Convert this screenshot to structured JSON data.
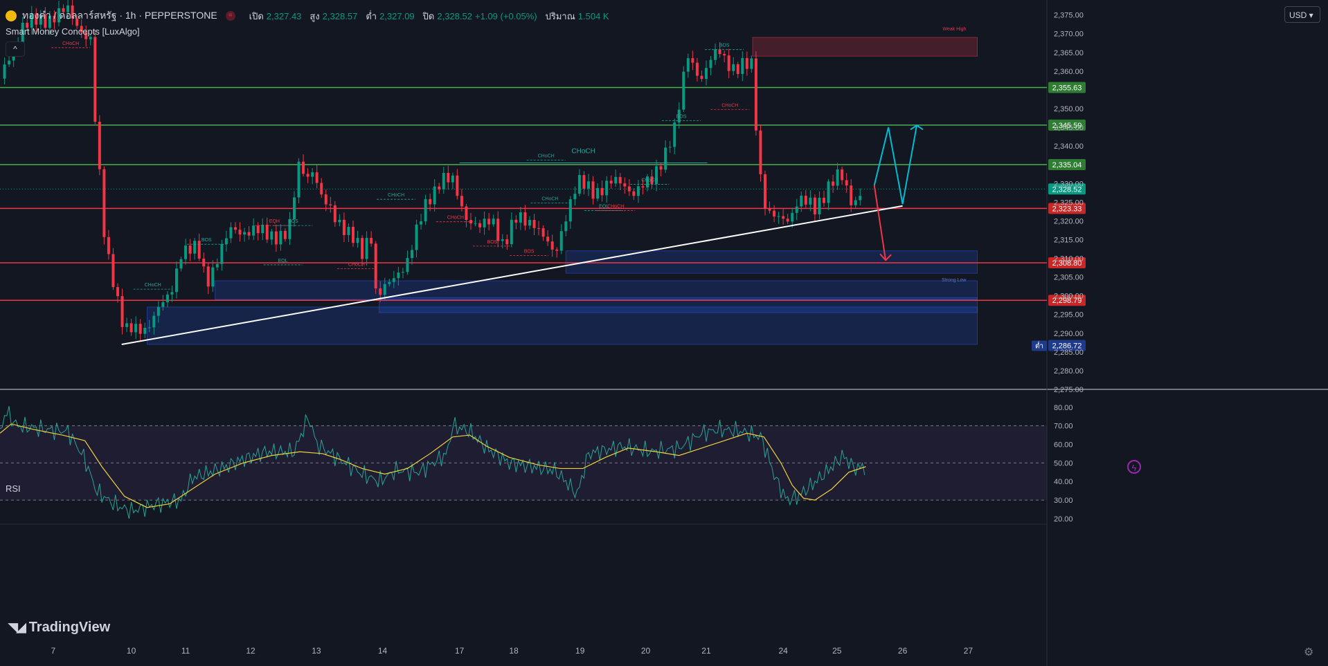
{
  "header": {
    "symbol": "ทองคำ / ดอลลาร์สหรัฐ · 1h · PEPPERSTONE",
    "open_label": "เปิด",
    "open": "2,327.43",
    "high_label": "สูง",
    "high": "2,328.57",
    "low_label": "ต่ำ",
    "low": "2,327.09",
    "close_label": "ปิด",
    "close": "2,328.52",
    "change": "+1.09 (+0.05%)",
    "volume_label": "ปริมาณ",
    "volume": "1.504 K",
    "market_icon": "equal-icon"
  },
  "indicator": {
    "name": "Smart Money Concepts [LuxAlgo]",
    "collapse_glyph": "^"
  },
  "currency": "USD",
  "rsi": {
    "title": "RSI"
  },
  "branding": {
    "logo_text": "TradingView"
  },
  "colors": {
    "background": "#131722",
    "grid": "#1e222d",
    "green_line": "#4caf50",
    "red_line": "#f23645",
    "bull": "#089981",
    "bear": "#f23645",
    "zone_blue": "#2962ff",
    "zone_red": "#f23645",
    "rsi_line": "#26a69a",
    "rsi_ma": "#f0d23a",
    "arrow_cyan": "#00bcd4",
    "trend": "#ffffff"
  },
  "chart_data": {
    "type": "candlestick",
    "symbol": "XAUUSD",
    "timeframe": "1h",
    "y_axis_ticks": [
      2375,
      2370,
      2365,
      2360,
      2350,
      2345,
      2340,
      2330,
      2325,
      2320,
      2315,
      2310,
      2305,
      2300,
      2295,
      2290,
      2285,
      2280,
      2275
    ],
    "y_axis_tick_labels": [
      "2,375.00",
      "2,370.00",
      "2,365.00",
      "2,360.00",
      "2,350.00",
      "2,345.00",
      "2,340.00",
      "2,330.00",
      "2,325.00",
      "2,320.00",
      "2,315.00",
      "2,310.00",
      "2,305.00",
      "2,300.00",
      "2,295.00",
      "2,290.00",
      "2,285.00",
      "2,280.00",
      "2,275.00"
    ],
    "ylim": [
      2275,
      2379
    ],
    "x_axis_labels": [
      {
        "label": "7",
        "bar": 94
      },
      {
        "label": "10",
        "bar": 232
      },
      {
        "label": "11",
        "bar": 328
      },
      {
        "label": "12",
        "bar": 443
      },
      {
        "label": "13",
        "bar": 559
      },
      {
        "label": "14",
        "bar": 676
      },
      {
        "label": "17",
        "bar": 812
      },
      {
        "label": "18",
        "bar": 908
      },
      {
        "label": "19",
        "bar": 1025
      },
      {
        "label": "20",
        "bar": 1141
      },
      {
        "label": "21",
        "bar": 1248
      },
      {
        "label": "24",
        "bar": 1384
      },
      {
        "label": "25",
        "bar": 1479
      },
      {
        "label": "26",
        "bar": 1595
      },
      {
        "label": "27",
        "bar": 1711
      }
    ],
    "price_path": [
      [
        0,
        2358
      ],
      [
        40,
        2372
      ],
      [
        120,
        2376
      ],
      [
        160,
        2368
      ],
      [
        165,
        2352
      ],
      [
        185,
        2315
      ],
      [
        200,
        2305
      ],
      [
        220,
        2290
      ],
      [
        260,
        2292
      ],
      [
        300,
        2300
      ],
      [
        320,
        2312
      ],
      [
        350,
        2312
      ],
      [
        365,
        2304
      ],
      [
        385,
        2310
      ],
      [
        410,
        2318
      ],
      [
        450,
        2317
      ],
      [
        510,
        2316
      ],
      [
        530,
        2337
      ],
      [
        540,
        2332
      ],
      [
        555,
        2334
      ],
      [
        565,
        2326
      ],
      [
        590,
        2322
      ],
      [
        610,
        2318
      ],
      [
        640,
        2311
      ],
      [
        655,
        2318
      ],
      [
        665,
        2300
      ],
      [
        690,
        2303
      ],
      [
        720,
        2310
      ],
      [
        755,
        2325
      ],
      [
        780,
        2332
      ],
      [
        800,
        2330
      ],
      [
        820,
        2322
      ],
      [
        850,
        2318
      ],
      [
        870,
        2320
      ],
      [
        890,
        2314
      ],
      [
        910,
        2320
      ],
      [
        945,
        2320
      ],
      [
        980,
        2310
      ],
      [
        1000,
        2322
      ],
      [
        1020,
        2330
      ],
      [
        1050,
        2328
      ],
      [
        1080,
        2330
      ],
      [
        1100,
        2330
      ],
      [
        1120,
        2328
      ],
      [
        1150,
        2330
      ],
      [
        1170,
        2337
      ],
      [
        1195,
        2345
      ],
      [
        1215,
        2365
      ],
      [
        1240,
        2358
      ],
      [
        1270,
        2366
      ],
      [
        1300,
        2360
      ],
      [
        1330,
        2362
      ],
      [
        1340,
        2336
      ],
      [
        1355,
        2322
      ],
      [
        1375,
        2320
      ],
      [
        1395,
        2321
      ],
      [
        1410,
        2326
      ],
      [
        1440,
        2323
      ],
      [
        1465,
        2330
      ],
      [
        1485,
        2332
      ],
      [
        1505,
        2325
      ],
      [
        1525,
        2328.5
      ]
    ],
    "horizontal_levels": [
      {
        "price": 2355.63,
        "label": "2,355.63",
        "color": "green"
      },
      {
        "price": 2345.59,
        "label": "2,345.59",
        "color": "green"
      },
      {
        "price": 2335.04,
        "label": "2,335.04",
        "color": "green"
      },
      {
        "price": 2323.33,
        "label": "2,323.33",
        "color": "red"
      },
      {
        "price": 2308.8,
        "label": "2,308.80",
        "color": "red"
      },
      {
        "price": 2298.79,
        "label": "2,298.79",
        "color": "red"
      }
    ],
    "current_price": {
      "price": 2328.52,
      "label": "2,328.52"
    },
    "low_marker": {
      "price": 2286.72,
      "label": "2,286.72",
      "tag": "ต่ำ"
    },
    "zones": [
      {
        "type": "supply",
        "x1": 1330,
        "x2": 1727,
        "y1": 2364,
        "y2": 2369,
        "label": "Weak High"
      },
      {
        "type": "demand",
        "x1": 1000,
        "x2": 1727,
        "y1": 2306,
        "y2": 2312,
        "label": "Strong Low"
      },
      {
        "type": "demand",
        "x1": 380,
        "x2": 1727,
        "y1": 2299,
        "y2": 2304,
        "label": ""
      },
      {
        "type": "demand",
        "x1": 260,
        "x2": 1727,
        "y1": 2287,
        "y2": 2297,
        "label": ""
      },
      {
        "type": "demand",
        "x1": 670,
        "x2": 1727,
        "y1": 2295.5,
        "y2": 2299.5,
        "label": ""
      }
    ],
    "structure_labels": [
      {
        "text": "CHoCH",
        "bar": 125,
        "price": 2367,
        "color": "red"
      },
      {
        "text": "CHoCH",
        "bar": 270,
        "price": 2302.5,
        "color": "green"
      },
      {
        "text": "BOS",
        "bar": 365,
        "price": 2314.5,
        "color": "green"
      },
      {
        "text": "EQH",
        "bar": 485,
        "price": 2319.5,
        "color": "red"
      },
      {
        "text": "BOS",
        "bar": 518,
        "price": 2319.5,
        "color": "green"
      },
      {
        "text": "EQL",
        "bar": 500,
        "price": 2309,
        "color": "green"
      },
      {
        "text": "CHoCH",
        "bar": 630,
        "price": 2308,
        "color": "red"
      },
      {
        "text": "CHoCH",
        "bar": 700,
        "price": 2326.5,
        "color": "green"
      },
      {
        "text": "CHoCH",
        "bar": 965,
        "price": 2337,
        "color": "green"
      },
      {
        "text": "CHoCH",
        "bar": 805,
        "price": 2320.5,
        "color": "red"
      },
      {
        "text": "BOS",
        "bar": 870,
        "price": 2314,
        "color": "red"
      },
      {
        "text": "BOS",
        "bar": 935,
        "price": 2311.5,
        "color": "red"
      },
      {
        "text": "CHoCH",
        "bar": 972,
        "price": 2325.5,
        "color": "green"
      },
      {
        "text": "EQL",
        "bar": 1067,
        "price": 2323.5,
        "color": "green"
      },
      {
        "text": "CHoCH",
        "bar": 1088,
        "price": 2323.5,
        "color": "red"
      },
      {
        "text": "CHoCH",
        "bar": 1148,
        "price": 2330.5,
        "color": "green"
      },
      {
        "text": "BOS",
        "bar": 1204,
        "price": 2347.5,
        "color": "green"
      },
      {
        "text": "BOS",
        "bar": 1280,
        "price": 2366.5,
        "color": "green"
      },
      {
        "text": "CHoCH",
        "bar": 1290,
        "price": 2350.5,
        "color": "red"
      }
    ],
    "trendline": {
      "from": [
        215,
        2287
      ],
      "to": [
        1595,
        2324
      ]
    },
    "projection_up": [
      [
        1545,
        2329.5
      ],
      [
        1570,
        2345
      ],
      [
        1595,
        2324.5
      ],
      [
        1620,
        2345.5
      ]
    ],
    "projection_down": [
      [
        1545,
        2329.5
      ],
      [
        1565,
        2309.5
      ]
    ],
    "rsi": {
      "title": "RSI",
      "ylim": [
        17,
        87
      ],
      "ticks": [
        80,
        70,
        60,
        50,
        40,
        30,
        20
      ],
      "tick_labels": [
        "80.00",
        "70.00",
        "60.00",
        "50.00",
        "40.00",
        "30.00",
        "20.00"
      ],
      "band_upper": 70,
      "band_middle": 50,
      "band_lower": 30,
      "path": [
        [
          0,
          66
        ],
        [
          10,
          78
        ],
        [
          30,
          70
        ],
        [
          80,
          68
        ],
        [
          120,
          67
        ],
        [
          150,
          52
        ],
        [
          170,
          35
        ],
        [
          200,
          28
        ],
        [
          230,
          24
        ],
        [
          280,
          28
        ],
        [
          320,
          30
        ],
        [
          340,
          42
        ],
        [
          400,
          48
        ],
        [
          430,
          52
        ],
        [
          470,
          56
        ],
        [
          520,
          56
        ],
        [
          545,
          75
        ],
        [
          560,
          60
        ],
        [
          600,
          52
        ],
        [
          640,
          44
        ],
        [
          670,
          40
        ],
        [
          700,
          46
        ],
        [
          740,
          45
        ],
        [
          790,
          55
        ],
        [
          800,
          70
        ],
        [
          830,
          67
        ],
        [
          860,
          58
        ],
        [
          900,
          50
        ],
        [
          940,
          48
        ],
        [
          980,
          46
        ],
        [
          1000,
          40
        ],
        [
          1020,
          33
        ],
        [
          1040,
          55
        ],
        [
          1100,
          59
        ],
        [
          1150,
          56
        ],
        [
          1200,
          58
        ],
        [
          1240,
          66
        ],
        [
          1270,
          68
        ],
        [
          1310,
          67
        ],
        [
          1345,
          64
        ],
        [
          1370,
          42
        ],
        [
          1390,
          30
        ],
        [
          1410,
          32
        ],
        [
          1430,
          37
        ],
        [
          1460,
          45
        ],
        [
          1490,
          54
        ],
        [
          1510,
          47
        ],
        [
          1530,
          48
        ]
      ],
      "ma_path": [
        [
          0,
          66
        ],
        [
          20,
          71
        ],
        [
          60,
          68
        ],
        [
          110,
          65
        ],
        [
          150,
          62
        ],
        [
          180,
          48
        ],
        [
          220,
          32
        ],
        [
          260,
          26
        ],
        [
          300,
          28
        ],
        [
          340,
          36
        ],
        [
          380,
          44
        ],
        [
          430,
          50
        ],
        [
          480,
          54
        ],
        [
          530,
          56
        ],
        [
          570,
          55
        ],
        [
          600,
          52
        ],
        [
          640,
          47
        ],
        [
          680,
          44
        ],
        [
          720,
          47
        ],
        [
          760,
          55
        ],
        [
          800,
          64
        ],
        [
          830,
          65
        ],
        [
          860,
          59
        ],
        [
          900,
          53
        ],
        [
          950,
          49
        ],
        [
          990,
          47
        ],
        [
          1030,
          47
        ],
        [
          1070,
          53
        ],
        [
          1110,
          58
        ],
        [
          1160,
          56
        ],
        [
          1200,
          54
        ],
        [
          1240,
          58
        ],
        [
          1280,
          62
        ],
        [
          1320,
          66
        ],
        [
          1350,
          64
        ],
        [
          1380,
          50
        ],
        [
          1400,
          38
        ],
        [
          1420,
          31
        ],
        [
          1440,
          30
        ],
        [
          1470,
          36
        ],
        [
          1500,
          45
        ],
        [
          1530,
          48
        ]
      ]
    }
  }
}
